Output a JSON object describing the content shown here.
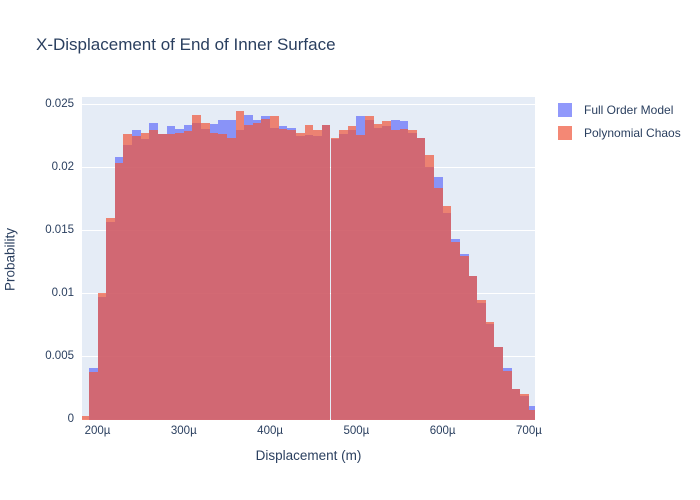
{
  "title": "X-Displacement of End of Inner Surface",
  "colors": {
    "text": "#2a3f5f",
    "plot_background": "#e5ecf6",
    "gridline": "#ffffff",
    "series_blue": "#636efa",
    "series_red": "#EF553B"
  },
  "legend": {
    "items": [
      {
        "label": "Full Order Model",
        "color": "#636efa"
      },
      {
        "label": "Polynomial Chaos",
        "color": "#EF553B"
      }
    ]
  },
  "chart_data": {
    "type": "bar",
    "subtype": "overlaid-histogram",
    "title": "X-Displacement of End of Inner Surface",
    "xlabel": "Displacement (m)",
    "ylabel": "Probability",
    "grid": true,
    "legend_position": "right-outside-top",
    "plot_bg": "#e5ecf6",
    "bar_opacity": 0.7,
    "x_range_microns": [
      182,
      707
    ],
    "ylim": [
      0,
      0.02563
    ],
    "x_tick_values_microns": [
      200,
      300,
      400,
      500,
      600,
      700
    ],
    "x_tick_labels": [
      "200µ",
      "300µ",
      "400µ",
      "500µ",
      "600µ",
      "700µ"
    ],
    "y_tick_values": [
      0,
      0.005,
      0.01,
      0.015,
      0.02,
      0.025
    ],
    "y_tick_labels": [
      "0",
      "0.005",
      "0.01",
      "0.015",
      "0.02",
      "0.025"
    ],
    "bin_width_microns": 10,
    "bin_start_microns": [
      180,
      190,
      200,
      210,
      220,
      230,
      240,
      250,
      260,
      270,
      280,
      290,
      300,
      310,
      320,
      330,
      340,
      350,
      360,
      370,
      380,
      390,
      400,
      410,
      420,
      430,
      440,
      450,
      460,
      470,
      480,
      490,
      500,
      510,
      520,
      530,
      540,
      550,
      560,
      570,
      580,
      590,
      600,
      610,
      620,
      630,
      640,
      650,
      660,
      670,
      680,
      690,
      700,
      710
    ],
    "series": [
      {
        "name": "Full Order Model",
        "color": "#636efa",
        "values": [
          0.0,
          0.0041,
          0.0098,
          0.0157,
          0.0209,
          0.0218,
          0.023,
          0.0223,
          0.0236,
          0.0227,
          0.0233,
          0.0231,
          0.0234,
          0.0236,
          0.0231,
          0.0235,
          0.0238,
          0.0238,
          0.023,
          0.0242,
          0.0238,
          0.0241,
          0.0232,
          0.0233,
          0.0232,
          0.0225,
          0.0226,
          0.0225,
          0.0234,
          0.0223,
          0.0227,
          0.023,
          0.0241,
          0.0238,
          0.0232,
          0.0233,
          0.0238,
          0.0237,
          0.0228,
          0.0224,
          0.0201,
          0.0193,
          0.0164,
          0.0144,
          0.0132,
          0.0114,
          0.0093,
          0.0076,
          0.0058,
          0.0041,
          0.0025,
          0.0019,
          0.0011,
          0.0
        ]
      },
      {
        "name": "Polynomial Chaos",
        "color": "#EF553B",
        "values": [
          0.0003,
          0.0038,
          0.0101,
          0.016,
          0.0204,
          0.0227,
          0.0225,
          0.0228,
          0.023,
          0.0227,
          0.0227,
          0.0228,
          0.0229,
          0.0242,
          0.0236,
          0.0228,
          0.0227,
          0.0224,
          0.0245,
          0.0234,
          0.0236,
          0.0239,
          0.0241,
          0.0231,
          0.023,
          0.0228,
          0.0234,
          0.023,
          0.0234,
          0.0224,
          0.023,
          0.0233,
          0.0226,
          0.0241,
          0.0235,
          0.0237,
          0.023,
          0.0231,
          0.023,
          0.0224,
          0.021,
          0.0184,
          0.017,
          0.0141,
          0.013,
          0.0114,
          0.0095,
          0.0078,
          0.0058,
          0.0039,
          0.0025,
          0.0021,
          0.0008,
          0.0004
        ]
      }
    ]
  }
}
